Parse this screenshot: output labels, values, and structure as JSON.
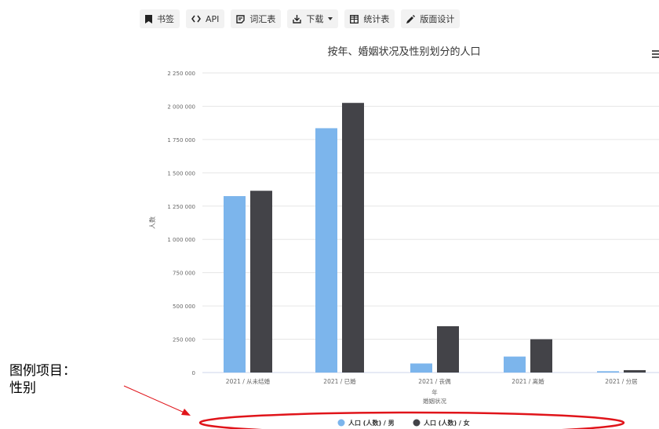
{
  "toolbar": {
    "items": [
      {
        "label": "书签",
        "icon": "bookmark-icon"
      },
      {
        "label": "API",
        "icon": "code-icon"
      },
      {
        "label": "词汇表",
        "icon": "glossary-icon"
      },
      {
        "label": "下载",
        "icon": "download-icon"
      },
      {
        "label": "统计表",
        "icon": "table-icon"
      },
      {
        "label": "版面设计",
        "icon": "pencil-icon"
      }
    ]
  },
  "annotation": {
    "text": "图例项目：\n性别"
  },
  "colors": {
    "male": "#7cb5ec",
    "female": "#434348",
    "annotation": "#e0141a"
  },
  "chart_data": {
    "type": "bar",
    "title": "按年、婚姻状况及性别划分的人口",
    "xlabel_lines": [
      "年",
      "婚姻状况"
    ],
    "ylabel": "人数",
    "categories": [
      "2021 / 从未结婚",
      "2021 / 已婚",
      "2021 / 丧偶",
      "2021 / 离婚",
      "2021 / 分居"
    ],
    "series": [
      {
        "name": "人口 (人数) / 男",
        "values": [
          1325000,
          1835000,
          68000,
          120000,
          10000
        ]
      },
      {
        "name": "人口 (人数) / 女",
        "values": [
          1365000,
          2025000,
          348000,
          250000,
          18000
        ]
      }
    ],
    "ylim": [
      0,
      2250000
    ],
    "yticks": [
      0,
      250000,
      500000,
      750000,
      1000000,
      1250000,
      1500000,
      1750000,
      2000000,
      2250000
    ],
    "ytick_labels": [
      "0",
      "250 000",
      "500 000",
      "750 000",
      "1 000 000",
      "1 250 000",
      "1 500 000",
      "1 750 000",
      "2 000 000",
      "2 250 000"
    ],
    "grid": true,
    "legend_position": "bottom-center"
  }
}
